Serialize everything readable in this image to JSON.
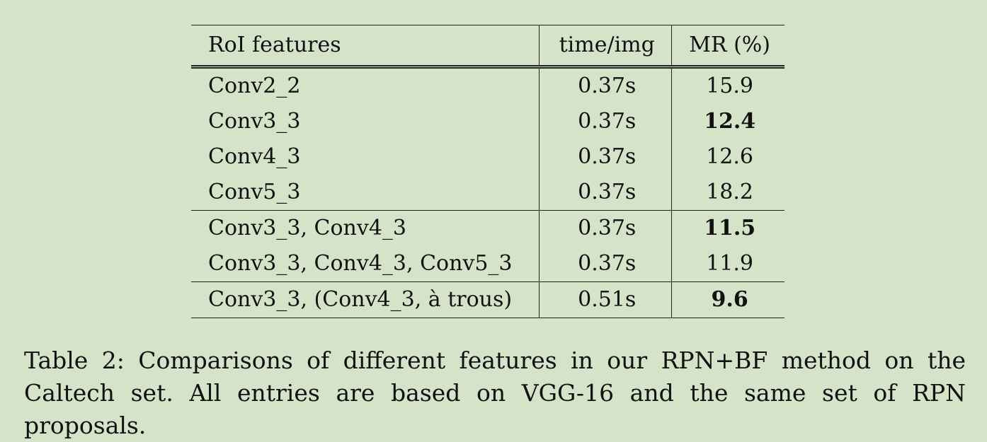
{
  "table": {
    "headers": [
      "RoI features",
      "time/img",
      "MR (%)"
    ],
    "rows": [
      {
        "feature": "Conv2_2",
        "time": "0.37s",
        "mr": "15.9",
        "bold": false
      },
      {
        "feature": "Conv3_3",
        "time": "0.37s",
        "mr": "12.4",
        "bold": true
      },
      {
        "feature": "Conv4_3",
        "time": "0.37s",
        "mr": "12.6",
        "bold": false
      },
      {
        "feature": "Conv5_3",
        "time": "0.37s",
        "mr": "18.2",
        "bold": false
      },
      {
        "feature": "Conv3_3, Conv4_3",
        "time": "0.37s",
        "mr": "11.5",
        "bold": true
      },
      {
        "feature": "Conv3_3, Conv4_3, Conv5_3",
        "time": "0.37s",
        "mr": "11.9",
        "bold": false
      },
      {
        "feature": "Conv3_3, (Conv4_3, à trous)",
        "time": "0.51s",
        "mr": "9.6",
        "bold": true
      }
    ]
  },
  "caption": "Table 2: Comparisons of different features in our RPN+BF method on the Caltech set. All entries are based on VGG-16 and the same set of RPN proposals."
}
